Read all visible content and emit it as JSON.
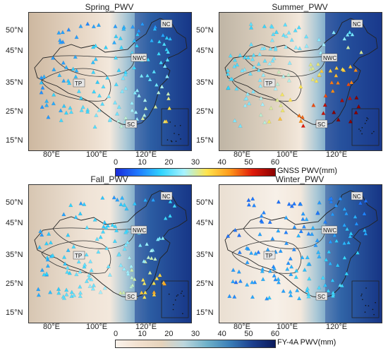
{
  "panels": [
    {
      "title": "Spring_PWV",
      "seed": 3,
      "wet": 0.35
    },
    {
      "title": "Summer_PWV",
      "seed": 7,
      "wet": 0.85
    },
    {
      "title": "Fall_PWV",
      "seed": 11,
      "wet": 0.45
    },
    {
      "title": "Winter_PWV",
      "seed": 19,
      "wet": 0.12
    }
  ],
  "lat_labels": [
    "50°N",
    "45°N",
    "35°N",
    "25°N",
    "15°N"
  ],
  "lon_labels": [
    "80°E",
    "100°E",
    "120°E"
  ],
  "regions": {
    "nc": "NC",
    "nwc": "NWC",
    "tp": "TP",
    "sc": "SC"
  },
  "colorbar_gnss": {
    "ticks": [
      "0",
      "10",
      "20",
      "30",
      "40",
      "50",
      "60"
    ],
    "unit": "GNSS PWV(mm)",
    "colors": [
      "#1a2bd8",
      "#1f7bff",
      "#30d4ff",
      "#a6f2ff",
      "#ffe44d",
      "#ff9a1a",
      "#e01a0a",
      "#8a0000"
    ]
  },
  "colorbar_fy4a": {
    "ticks": [
      "0",
      "10",
      "20",
      "30",
      "40",
      "50",
      "60"
    ],
    "unit": "FY-4A PWV(mm)",
    "colors": [
      "#fbf3ec",
      "#f2e0cf",
      "#e6d3bb",
      "#bcd6dd",
      "#6fb1c9",
      "#3a7fb8",
      "#1c3f8e",
      "#0b1a5c"
    ]
  }
}
